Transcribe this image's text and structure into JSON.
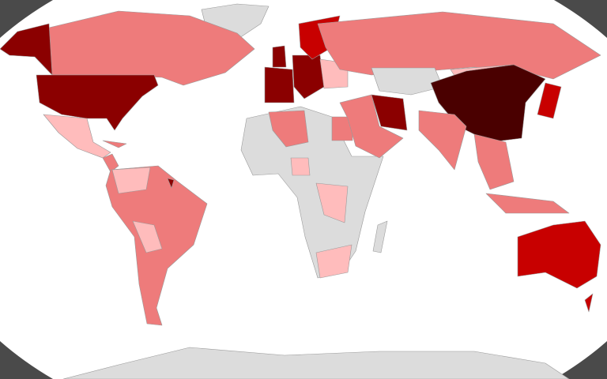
{
  "map": {
    "frame_color": "#4a4a4a",
    "ocean_color": "#ffffff",
    "no_data_color": "#dcdcdc",
    "scale_colors": [
      "#ffbcbc",
      "#ee7b7b",
      "#c80000",
      "#8b0000",
      "#4a0000"
    ]
  }
}
